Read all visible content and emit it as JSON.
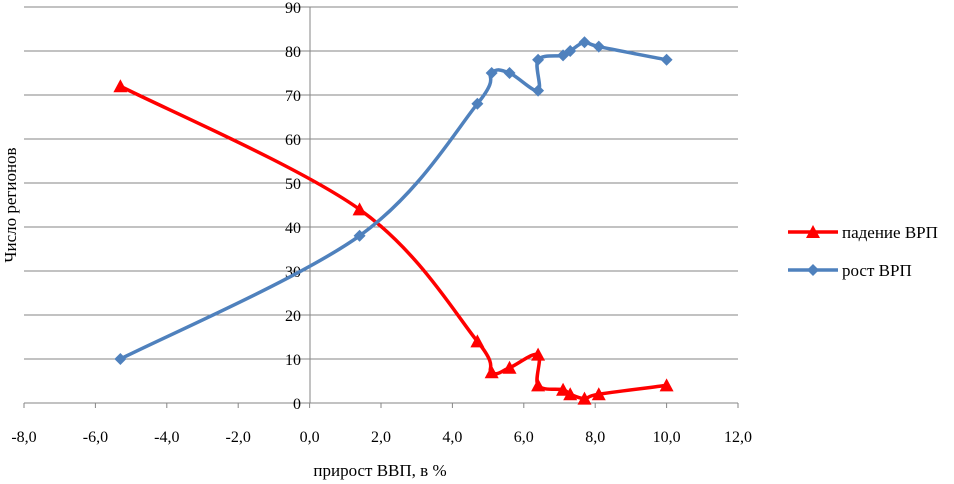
{
  "chart_data": {
    "type": "line",
    "xlabel": "прирост ВВП, в %",
    "ylabel": "Число регионов",
    "xlim": [
      -8,
      12
    ],
    "ylim": [
      0,
      90
    ],
    "x_ticks": [
      -8,
      -6,
      -4,
      -2,
      0,
      2,
      4,
      6,
      8,
      10,
      12
    ],
    "x_tick_labels": [
      "-8,0",
      "-6,0",
      "-4,0",
      "-2,0",
      "0,0",
      "2,0",
      "4,0",
      "6,0",
      "8,0",
      "10,0",
      "12,0"
    ],
    "y_ticks": [
      0,
      10,
      20,
      30,
      40,
      50,
      60,
      70,
      80,
      90
    ],
    "y_tick_labels": [
      "0",
      "10",
      "20",
      "30",
      "40",
      "50",
      "60",
      "70",
      "80",
      "90"
    ],
    "grid": "horizontal",
    "legend_position": "right",
    "series": [
      {
        "name": "падение ВРП",
        "color": "#ff0000",
        "marker": "triangle",
        "x": [
          -5.3,
          1.4,
          4.7,
          5.1,
          5.6,
          6.4,
          6.4,
          7.1,
          7.3,
          7.7,
          8.1,
          10.0
        ],
        "y": [
          72,
          44,
          14,
          7,
          8,
          11,
          4,
          3,
          2,
          1,
          2,
          4
        ]
      },
      {
        "name": "рост ВРП",
        "color": "#4f81bd",
        "marker": "diamond",
        "x": [
          -5.3,
          1.4,
          4.7,
          5.1,
          5.6,
          6.4,
          6.4,
          7.1,
          7.3,
          7.7,
          8.1,
          10.0
        ],
        "y": [
          10,
          38,
          68,
          75,
          75,
          71,
          78,
          79,
          80,
          82,
          81,
          78
        ]
      }
    ]
  }
}
